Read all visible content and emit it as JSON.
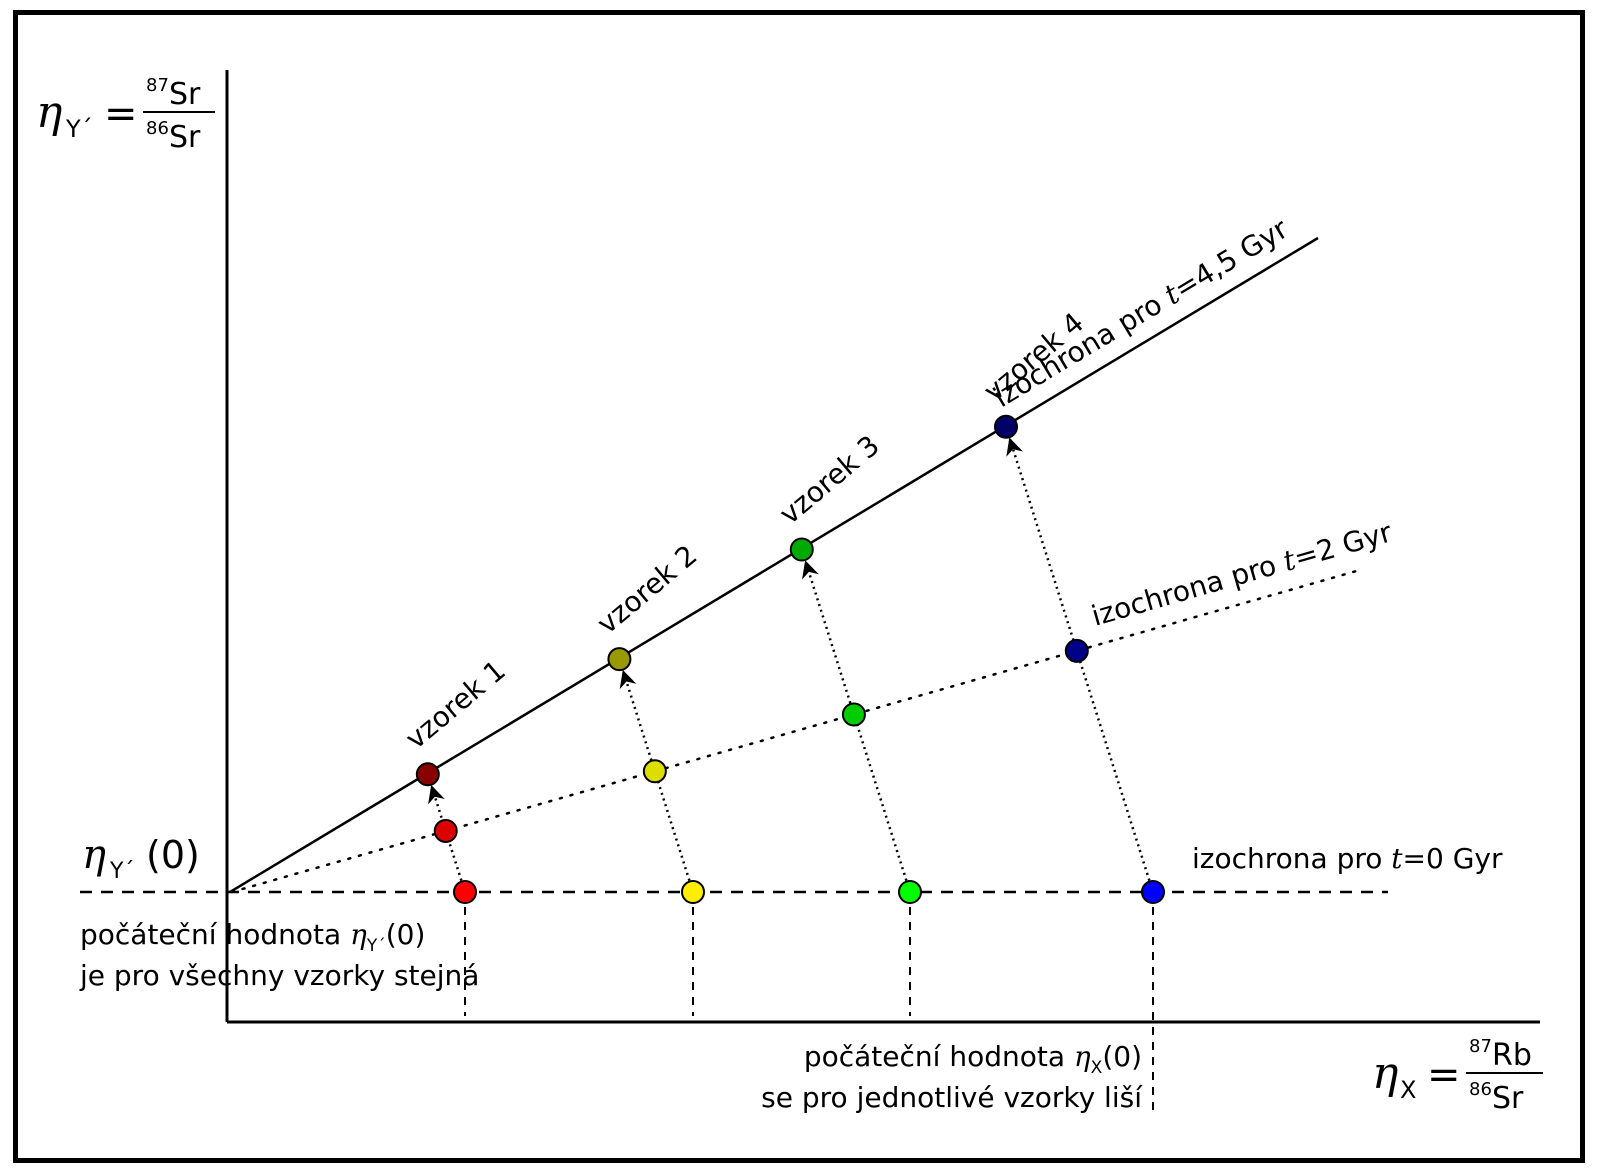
{
  "axes": {
    "y": {
      "symbol": "η",
      "sub": "Y´",
      "eq": "=",
      "num_sup": "87",
      "num": "Sr",
      "den_sup": "86",
      "den": "Sr"
    },
    "x": {
      "symbol": "η",
      "sub": "X",
      "eq": "=",
      "num_sup": "87",
      "num": "Rb",
      "den_sup": "86",
      "den": "Sr"
    },
    "y0_label": {
      "symbol": "η",
      "sub": "Y´",
      "arg": "(0)"
    }
  },
  "isochrons": [
    {
      "prefix": "izochrona pro ",
      "var": "t",
      "value": "=4,5 Gyr",
      "style": "solid"
    },
    {
      "prefix": "izochrona pro ",
      "var": "t",
      "value": "=2 Gyr",
      "style": "dotted"
    },
    {
      "prefix": "izochrona pro ",
      "var": "t",
      "value": "=0 Gyr",
      "style": "dashed"
    }
  ],
  "samples": [
    {
      "name": "vzorek 1",
      "colors": {
        "t0": "#ff0000",
        "t2": "#dd0000",
        "t45": "#880000"
      }
    },
    {
      "name": "vzorek 2",
      "colors": {
        "t0": "#ffee00",
        "t2": "#dddd00",
        "t45": "#999900"
      }
    },
    {
      "name": "vzorek 3",
      "colors": {
        "t0": "#00ff00",
        "t2": "#00cc00",
        "t45": "#00aa00"
      }
    },
    {
      "name": "vzorek 4",
      "colors": {
        "t0": "#0000ff",
        "t2": "#000088",
        "t45": "#000066"
      }
    }
  ],
  "notes": {
    "y_initial": {
      "line1_prefix": "počáteční hodnota ",
      "symbol": "η",
      "sub": "Y´",
      "arg": "(0)",
      "line2": "je pro všechny vzorky stejná"
    },
    "x_initial": {
      "line1_prefix": "počáteční hodnota ",
      "symbol": "η",
      "sub": "X",
      "arg": "(0)",
      "line2": "se pro jednotlivé vzorky liší"
    }
  }
}
